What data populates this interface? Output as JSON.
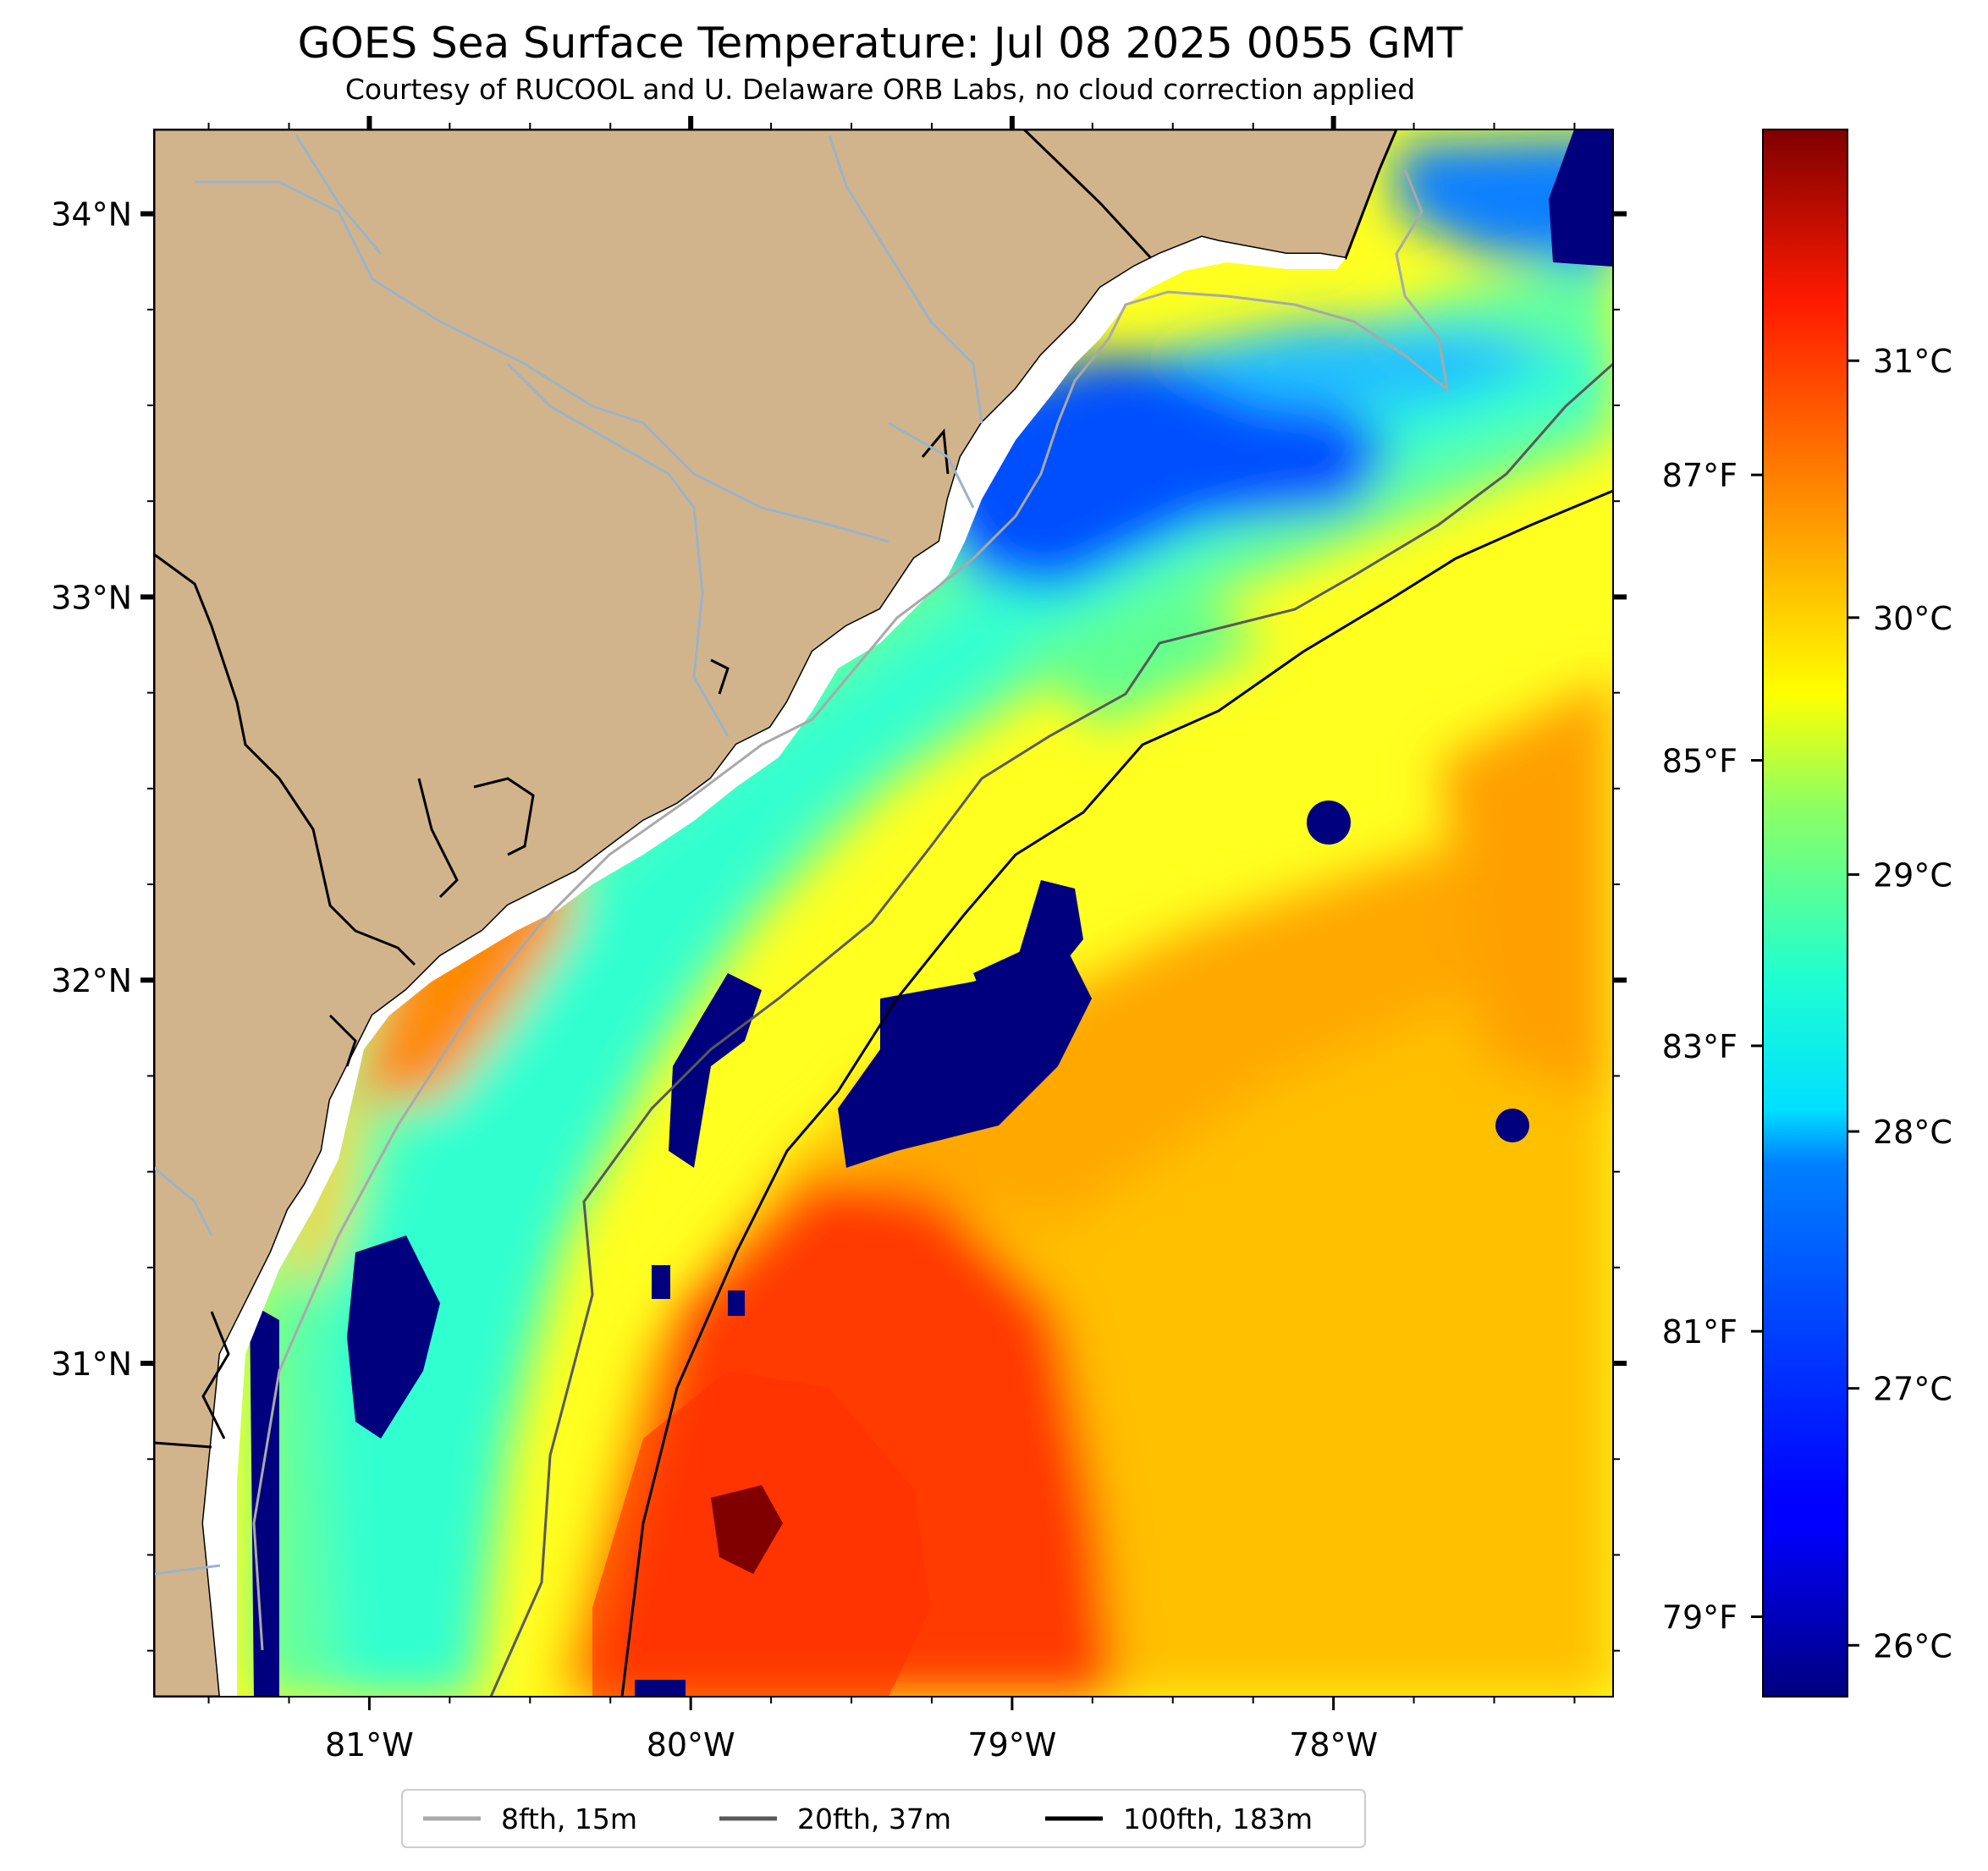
{
  "title": "GOES Sea Surface Temperature: Jul 08 2025 0055 GMT",
  "subtitle": "Courtesy of RUCOOL and U. Delaware ORB Labs, no cloud correction applied",
  "map": {
    "lon_range": [
      -81.67,
      -77.13
    ],
    "lat_range": [
      30.13,
      34.22
    ],
    "lon_ticks": [
      {
        "value": -81,
        "label": "81°W"
      },
      {
        "value": -80,
        "label": "80°W"
      },
      {
        "value": -79,
        "label": "79°W"
      },
      {
        "value": -78,
        "label": "78°W"
      }
    ],
    "lat_ticks": [
      {
        "value": 31,
        "label": "31°N"
      },
      {
        "value": 32,
        "label": "32°N"
      },
      {
        "value": 33,
        "label": "33°N"
      },
      {
        "value": 34,
        "label": "34°N"
      }
    ],
    "colors": {
      "land": "#d2b48c",
      "coast": "#000000",
      "rivers": "#9bb3c8",
      "cloud_mask": "#00007f"
    }
  },
  "colorbar": {
    "celsius_range": [
      25.8,
      31.9
    ],
    "celsius_ticks": [
      {
        "value": 26,
        "label": "26°C"
      },
      {
        "value": 27,
        "label": "27°C"
      },
      {
        "value": 28,
        "label": "28°C"
      },
      {
        "value": 29,
        "label": "29°C"
      },
      {
        "value": 30,
        "label": "30°C"
      },
      {
        "value": 31,
        "label": "31°C"
      }
    ],
    "fahrenheit_ticks": [
      {
        "value": 79,
        "label": "79°F"
      },
      {
        "value": 81,
        "label": "81°F"
      },
      {
        "value": 83,
        "label": "83°F"
      },
      {
        "value": 85,
        "label": "85°F"
      },
      {
        "value": 87,
        "label": "87°F"
      }
    ],
    "colormap": "jet"
  },
  "legend": [
    {
      "label": "8fth, 15m",
      "color": "#a9a9a9"
    },
    {
      "label": "20fth, 37m",
      "color": "#595959"
    },
    {
      "label": "100fth, 183m",
      "color": "#000000"
    }
  ]
}
